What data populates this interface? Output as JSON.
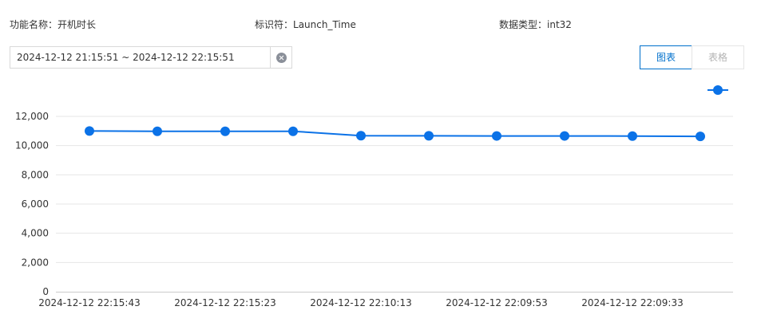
{
  "info": {
    "function_name_label": "功能名称：",
    "function_name_value": "开机时长",
    "identifier_label": "标识符：",
    "identifier_value": "Launch_Time",
    "data_type_label": "数据类型：",
    "data_type_value": "int32"
  },
  "date_range": {
    "value": "2024-12-12 21:15:51 ~ 2024-12-12 22:15:51"
  },
  "view_toggle": {
    "chart_label": "图表",
    "table_label": "表格",
    "active": "chart"
  },
  "colors": {
    "accent": "#0070cc",
    "series": "#0b72e7",
    "grid": "#e6e6e6"
  },
  "icons": {
    "clear": "circle-x-icon",
    "legend": "line-dot-legend-icon"
  },
  "chart_data": {
    "type": "line",
    "title": "",
    "xlabel": "",
    "ylabel": "",
    "ylim": [
      0,
      12000
    ],
    "yticks": [
      "0",
      "2,000",
      "4,000",
      "6,000",
      "8,000",
      "10,000",
      "12,000"
    ],
    "ytick_values": [
      0,
      2000,
      4000,
      6000,
      8000,
      10000,
      12000
    ],
    "grid": true,
    "legend_position": "top-right",
    "categories": [
      "2024-12-12 22:15:43",
      "",
      "2024-12-12 22:15:23",
      "",
      "2024-12-12 22:10:13",
      "",
      "2024-12-12 22:09:53",
      "",
      "2024-12-12 22:09:33",
      ""
    ],
    "series": [
      {
        "values": [
          11000,
          10980,
          10980,
          10980,
          10680,
          10670,
          10660,
          10660,
          10650,
          10630
        ]
      }
    ]
  }
}
